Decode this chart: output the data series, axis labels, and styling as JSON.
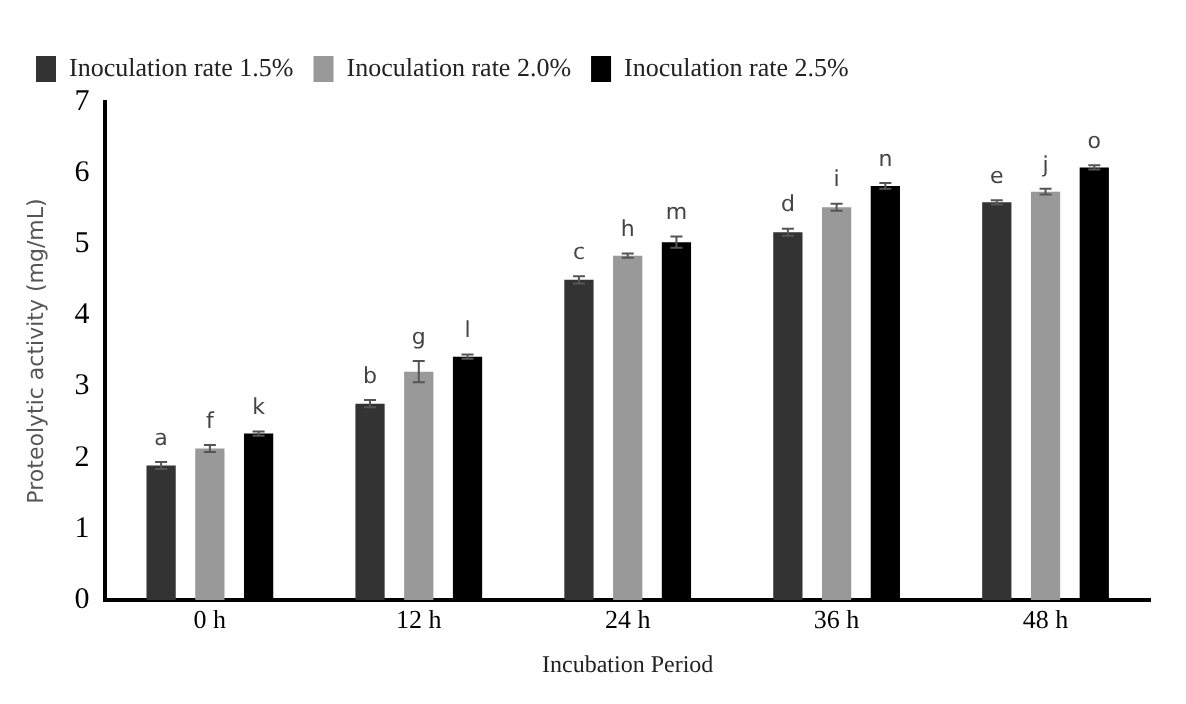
{
  "chart_data": {
    "type": "bar",
    "xlabel": "Incubation Period",
    "ylabel": "Proteolytic activity (mg/mL)",
    "categories": [
      "0 h",
      "12 h",
      "24 h",
      "36 h",
      "48 h"
    ],
    "series": [
      {
        "name": "Inoculation rate 1.5%",
        "color": "#333333",
        "values": [
          1.89,
          2.76,
          4.5,
          5.17,
          5.59
        ],
        "errors": [
          0.05,
          0.05,
          0.05,
          0.05,
          0.03
        ]
      },
      {
        "name": "Inoculation rate 2.0%",
        "color": "#999999",
        "values": [
          2.13,
          3.21,
          4.84,
          5.52,
          5.74
        ],
        "errors": [
          0.05,
          0.15,
          0.03,
          0.05,
          0.04
        ]
      },
      {
        "name": "Inoculation rate 2.5%",
        "color": "#000000",
        "values": [
          2.34,
          3.42,
          5.03,
          5.82,
          6.08
        ],
        "errors": [
          0.03,
          0.03,
          0.08,
          0.04,
          0.03
        ]
      }
    ],
    "ylim": [
      0,
      7
    ],
    "yticks": [
      0,
      1,
      2,
      3,
      4,
      5,
      6,
      7
    ],
    "grid": false,
    "legend": "top left",
    "annotations": [
      "a",
      "b",
      "c",
      "d",
      "e",
      "f",
      "g",
      "h",
      "i",
      "j",
      "k",
      "l",
      "m",
      "n",
      "o"
    ]
  }
}
